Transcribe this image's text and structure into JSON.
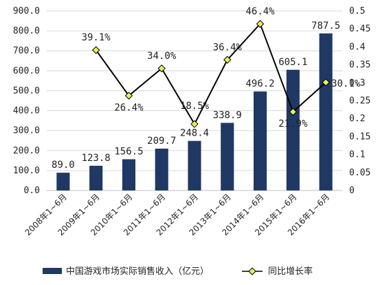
{
  "chart_data": {
    "type": "bar",
    "categories": [
      "2008年1~6月",
      "2009年1~6月",
      "2010年1~6月",
      "2011年1~6月",
      "2012年1~6月",
      "2013年1~6月",
      "2014年1~6月",
      "2015年1~6月",
      "2016年1~6月"
    ],
    "series": [
      {
        "name": "中国游戏市场实际销售收入（亿元）",
        "type": "bar",
        "axis": "left",
        "color": "#1f3864",
        "values": [
          89.0,
          123.8,
          156.5,
          209.7,
          248.4,
          338.9,
          496.2,
          605.1,
          787.5
        ],
        "labels": [
          "89.0",
          "123.8",
          "156.5",
          "209.7",
          "248.4",
          "338.9",
          "496.2",
          "605.1",
          "787.5"
        ]
      },
      {
        "name": "同比增长率",
        "type": "line",
        "axis": "right",
        "color": "#000000",
        "marker_color": "#e8ef5a",
        "values": [
          null,
          0.391,
          0.264,
          0.34,
          0.185,
          0.364,
          0.464,
          0.219,
          0.301
        ],
        "labels": [
          "",
          "39.1%",
          "26.4%",
          "34.0%",
          "18.5%",
          "36.4%",
          "46.4%",
          "21.9%",
          "30.1%"
        ]
      }
    ],
    "y_left": {
      "ylim": [
        0,
        900
      ],
      "ticks": [
        0,
        100,
        200,
        300,
        400,
        500,
        600,
        700,
        800,
        900
      ],
      "tick_labels": [
        "0.0",
        "100.0",
        "200.0",
        "300.0",
        "400.0",
        "500.0",
        "600.0",
        "700.0",
        "800.0",
        "900.0"
      ]
    },
    "y_right": {
      "ylim": [
        0,
        0.5
      ],
      "ticks": [
        0,
        0.05,
        0.1,
        0.15,
        0.2,
        0.25,
        0.3,
        0.35,
        0.4,
        0.45,
        0.5
      ],
      "tick_labels": [
        "0",
        "0.05",
        "0.1",
        "0.15",
        "0.2",
        "0.25",
        "0.3",
        "0.35",
        "0.4",
        "0.45",
        "0.5"
      ]
    },
    "grid": true,
    "legend_position": "bottom"
  }
}
